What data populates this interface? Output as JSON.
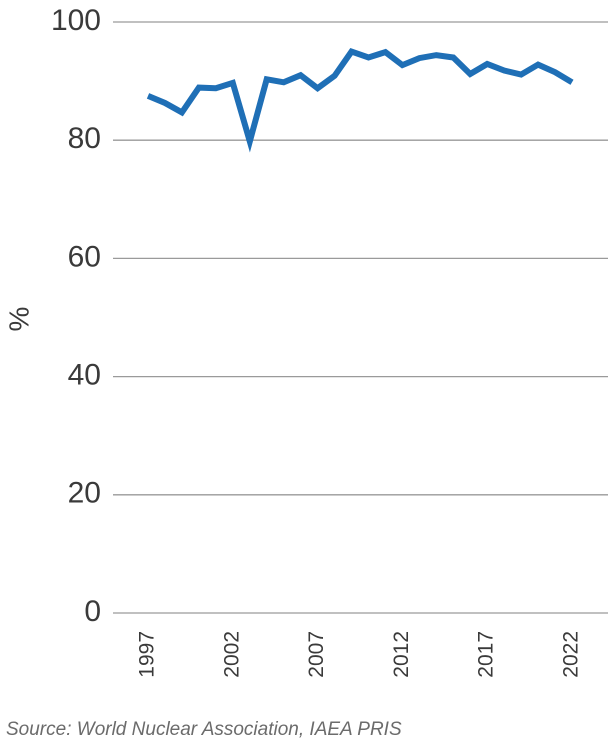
{
  "chart_data": {
    "type": "line",
    "title": "",
    "xlabel": "",
    "ylabel": "%",
    "ylim": [
      0,
      100
    ],
    "yticks": [
      0,
      20,
      40,
      60,
      80,
      100
    ],
    "xlim": [
      1997,
      2022
    ],
    "xticks": [
      1997,
      2002,
      2007,
      2012,
      2017,
      2022
    ],
    "grid": "horizontal",
    "legend": "none",
    "series": [
      {
        "color": "#1f6fb6",
        "x": [
          1997,
          1998,
          1999,
          2000,
          2001,
          2002,
          2003,
          2004,
          2005,
          2006,
          2007,
          2008,
          2009,
          2010,
          2011,
          2012,
          2013,
          2014,
          2015,
          2016,
          2017,
          2018,
          2019,
          2020,
          2021,
          2022
        ],
        "y": [
          87.5,
          86.3,
          84.7,
          88.9,
          88.8,
          89.7,
          79.8,
          90.3,
          89.8,
          91.0,
          88.8,
          90.9,
          95.0,
          94.0,
          94.9,
          92.7,
          93.9,
          94.4,
          94.0,
          91.2,
          92.9,
          91.8,
          91.1,
          92.8,
          91.5,
          89.8
        ]
      }
    ]
  },
  "source": "Source: World Nuclear Association, IAEA PRIS"
}
